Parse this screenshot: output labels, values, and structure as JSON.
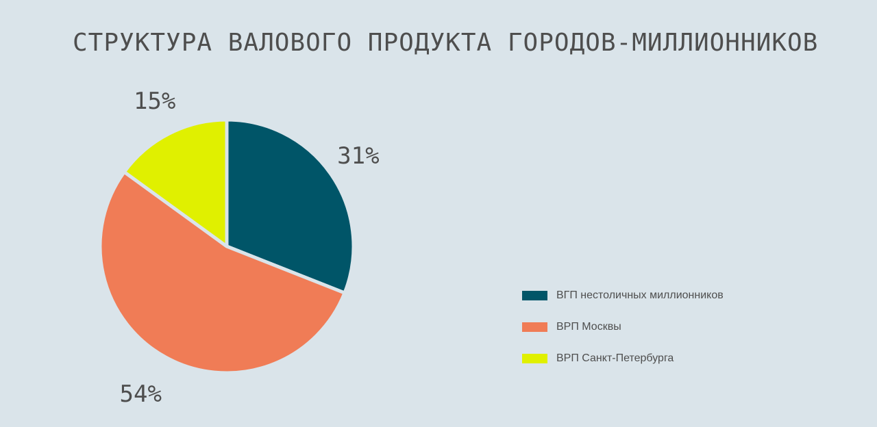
{
  "chart_data": {
    "type": "pie",
    "title": "СТРУКТУРА ВАЛОВОГО ПРОДУКТА ГОРОДОВ-МИЛЛИОННИКОВ",
    "slices": [
      {
        "label": "ВГП нестоличных миллионников",
        "value": 31,
        "value_label": "31%",
        "color": "#005568"
      },
      {
        "label": "ВРП Москвы",
        "value": 54,
        "value_label": "54%",
        "color": "#f07c56"
      },
      {
        "label": "ВРП Санкт-Петербурга",
        "value": 15,
        "value_label": "15%",
        "color": "#e0f000"
      }
    ],
    "start_angle": "12 o'clock",
    "direction": "clockwise",
    "legend_position": "bottom-right"
  }
}
